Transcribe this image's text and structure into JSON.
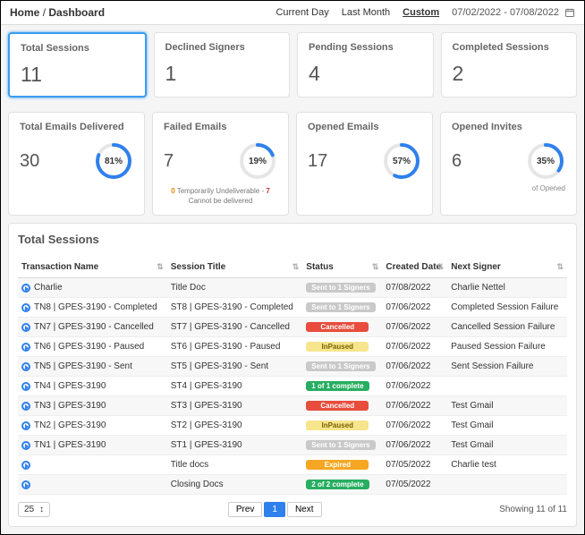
{
  "breadcrumb": {
    "home": "Home",
    "sep": "/",
    "current": "Dashboard"
  },
  "range": {
    "current_day": "Current Day",
    "last_month": "Last Month",
    "custom": "Custom",
    "active": "custom",
    "dates": "07/02/2022 - 07/08/2022"
  },
  "colors": {
    "donut_ring_bg": "#e6e6e6",
    "donut_ring_fg": "#2f80ed"
  },
  "stats_row1": [
    {
      "key": "total-sessions",
      "title": "Total Sessions",
      "value": "11",
      "selected": true
    },
    {
      "key": "declined-signers",
      "title": "Declined Signers",
      "value": "1"
    },
    {
      "key": "pending-sessions",
      "title": "Pending Sessions",
      "value": "4"
    },
    {
      "key": "completed-sessions",
      "title": "Completed Sessions",
      "value": "2"
    }
  ],
  "stats_row2": [
    {
      "key": "emails-delivered",
      "title": "Total Emails Delivered",
      "value": "30",
      "pct": 81,
      "pct_label": "81%"
    },
    {
      "key": "failed-emails",
      "title": "Failed Emails",
      "value": "7",
      "pct": 19,
      "pct_label": "19%",
      "note_prefix_num": "0",
      "note_prefix": " Temporarily Undeliverable - ",
      "note_suffix_num": "7",
      "note_suffix": "Cannot be delivered"
    },
    {
      "key": "opened-emails",
      "title": "Opened Emails",
      "value": "17",
      "pct": 57,
      "pct_label": "57%"
    },
    {
      "key": "opened-invites",
      "title": "Opened Invites",
      "value": "6",
      "pct": 35,
      "pct_label": "35%",
      "of_label": "of Opened"
    }
  ],
  "table": {
    "title": "Total Sessions",
    "columns": [
      "Transaction Name",
      "Session Title",
      "Status",
      "Created Date",
      "Next Signer"
    ],
    "status_colors": {
      "Sent to 1 Signers": "#c9c9c9",
      "Cancelled": "#e74c3c",
      "InPaused": "#f6e58d",
      "InPaused_text": "#7a6300",
      "1 of 1 complete": "#27ae60",
      "2 of 2 complete": "#27ae60",
      "Expired": "#f5a623"
    },
    "rows": [
      {
        "tx": "Charlie",
        "title": "Title Doc",
        "status": "Sent to 1 Signers",
        "date": "07/08/2022",
        "signer": "Charlie Nettel"
      },
      {
        "tx": "TN8 | GPES-3190 - Completed",
        "title": "ST8 | GPES-3190 - Completed",
        "status": "Sent to 1 Signers",
        "date": "07/06/2022",
        "signer": "Completed Session Failure"
      },
      {
        "tx": "TN7 | GPES-3190 - Cancelled",
        "title": "ST7 | GPES-3190 - Cancelled",
        "status": "Cancelled",
        "date": "07/06/2022",
        "signer": "Cancelled Session Failure"
      },
      {
        "tx": "TN6 | GPES-3190 - Paused",
        "title": "ST6 | GPES-3190 - Paused",
        "status": "InPaused",
        "date": "07/06/2022",
        "signer": "Paused Session Failure"
      },
      {
        "tx": "TN5 | GPES-3190 - Sent",
        "title": "ST5 | GPES-3190 - Sent",
        "status": "Sent to 1 Signers",
        "date": "07/06/2022",
        "signer": "Sent Session Failure"
      },
      {
        "tx": "TN4 | GPES-3190",
        "title": "ST4 | GPES-3190",
        "status": "1 of 1 complete",
        "date": "07/06/2022",
        "signer": ""
      },
      {
        "tx": "TN3 | GPES-3190",
        "title": "ST3 | GPES-3190",
        "status": "Cancelled",
        "date": "07/06/2022",
        "signer": "Test Gmail"
      },
      {
        "tx": "TN2 | GPES-3190",
        "title": "ST2 | GPES-3190",
        "status": "InPaused",
        "date": "07/06/2022",
        "signer": "Test Gmail"
      },
      {
        "tx": "TN1 | GPES-3190",
        "title": "ST1 | GPES-3190",
        "status": "Sent to 1 Signers",
        "date": "07/06/2022",
        "signer": "Test Gmail"
      },
      {
        "tx": "",
        "title": "Title docs",
        "status": "Expired",
        "date": "07/05/2022",
        "signer": "Charlie test"
      },
      {
        "tx": "",
        "title": "Closing Docs",
        "status": "2 of 2 complete",
        "date": "07/05/2022",
        "signer": ""
      }
    ]
  },
  "footer": {
    "page_size": "25",
    "prev": "Prev",
    "page": "1",
    "next": "Next",
    "showing": "Showing 11 of 11"
  }
}
